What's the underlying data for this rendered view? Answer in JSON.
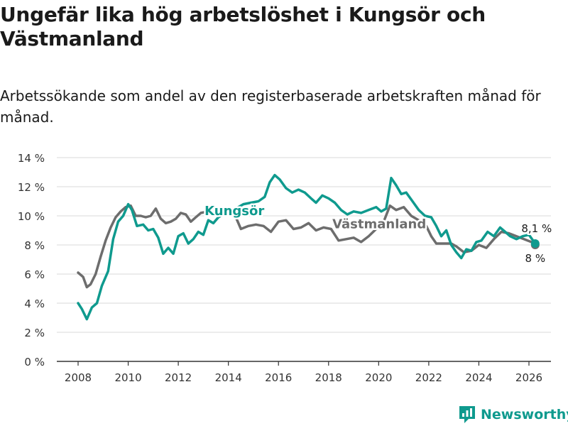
{
  "chart_data": {
    "type": "line",
    "title": "Ungefär lika hög arbetslöshet i Kungsör och Västmanland",
    "subtitle": "Arbetssökande som andel av den registerbaserade arbetskraften månad för månad.",
    "xlabel": "",
    "ylabel": "",
    "xlim": [
      2007.5,
      2026.8
    ],
    "ylim": [
      0,
      14
    ],
    "x_ticks": [
      2008,
      2010,
      2012,
      2014,
      2016,
      2018,
      2020,
      2022,
      2024,
      2026
    ],
    "x_tick_labels": [
      "2008",
      "2010",
      "2012",
      "2014",
      "2016",
      "2018",
      "2020",
      "2022",
      "2024",
      "2026"
    ],
    "y_ticks": [
      0,
      2,
      4,
      6,
      8,
      10,
      12,
      14
    ],
    "y_tick_labels": [
      "0 %",
      "2 %",
      "4 %",
      "6 %",
      "8 %",
      "10 %",
      "12 %",
      "14 %"
    ],
    "grid": true,
    "series": [
      {
        "name": "Västmanland",
        "color": "#6d6d6d",
        "end_label": "8 %",
        "points": [
          [
            2008.0,
            6.1
          ],
          [
            2008.2,
            5.8
          ],
          [
            2008.35,
            5.1
          ],
          [
            2008.5,
            5.3
          ],
          [
            2008.7,
            6.0
          ],
          [
            2008.9,
            7.2
          ],
          [
            2009.1,
            8.3
          ],
          [
            2009.3,
            9.2
          ],
          [
            2009.5,
            9.9
          ],
          [
            2009.7,
            10.3
          ],
          [
            2009.9,
            10.6
          ],
          [
            2010.1,
            10.7
          ],
          [
            2010.3,
            10.0
          ],
          [
            2010.5,
            10.0
          ],
          [
            2010.7,
            9.9
          ],
          [
            2010.9,
            10.0
          ],
          [
            2011.1,
            10.5
          ],
          [
            2011.3,
            9.8
          ],
          [
            2011.5,
            9.5
          ],
          [
            2011.7,
            9.6
          ],
          [
            2011.9,
            9.8
          ],
          [
            2012.1,
            10.2
          ],
          [
            2012.3,
            10.1
          ],
          [
            2012.5,
            9.6
          ],
          [
            2012.7,
            9.9
          ],
          [
            2012.9,
            10.2
          ],
          [
            2013.2,
            10.3
          ],
          [
            2013.6,
            10.1
          ],
          [
            2014.0,
            10.2
          ],
          [
            2014.3,
            9.9
          ],
          [
            2014.5,
            9.1
          ],
          [
            2014.8,
            9.3
          ],
          [
            2015.1,
            9.4
          ],
          [
            2015.4,
            9.3
          ],
          [
            2015.7,
            8.9
          ],
          [
            2016.0,
            9.6
          ],
          [
            2016.3,
            9.7
          ],
          [
            2016.6,
            9.1
          ],
          [
            2016.9,
            9.2
          ],
          [
            2017.2,
            9.5
          ],
          [
            2017.5,
            9.0
          ],
          [
            2017.8,
            9.2
          ],
          [
            2018.1,
            9.1
          ],
          [
            2018.4,
            8.3
          ],
          [
            2018.7,
            8.4
          ],
          [
            2019.0,
            8.5
          ],
          [
            2019.3,
            8.2
          ],
          [
            2019.6,
            8.6
          ],
          [
            2019.9,
            9.1
          ],
          [
            2020.2,
            9.6
          ],
          [
            2020.45,
            10.7
          ],
          [
            2020.7,
            10.4
          ],
          [
            2021.0,
            10.6
          ],
          [
            2021.3,
            10.0
          ],
          [
            2021.6,
            9.7
          ],
          [
            2021.9,
            9.3
          ],
          [
            2022.1,
            8.6
          ],
          [
            2022.3,
            8.1
          ],
          [
            2022.6,
            8.1
          ],
          [
            2022.9,
            8.1
          ],
          [
            2023.1,
            7.9
          ],
          [
            2023.4,
            7.5
          ],
          [
            2023.7,
            7.6
          ],
          [
            2024.0,
            8.0
          ],
          [
            2024.3,
            7.8
          ],
          [
            2024.6,
            8.4
          ],
          [
            2024.9,
            8.9
          ],
          [
            2025.2,
            8.8
          ],
          [
            2025.5,
            8.6
          ],
          [
            2025.8,
            8.4
          ],
          [
            2026.1,
            8.2
          ],
          [
            2026.25,
            8.0
          ]
        ]
      },
      {
        "name": "Kungsör",
        "color": "#0f9a8e",
        "end_label": "8,1 %",
        "points": [
          [
            2008.0,
            4.0
          ],
          [
            2008.15,
            3.6
          ],
          [
            2008.35,
            2.9
          ],
          [
            2008.55,
            3.7
          ],
          [
            2008.75,
            4.0
          ],
          [
            2008.95,
            5.2
          ],
          [
            2009.2,
            6.2
          ],
          [
            2009.4,
            8.4
          ],
          [
            2009.6,
            9.6
          ],
          [
            2009.8,
            10.0
          ],
          [
            2010.0,
            10.8
          ],
          [
            2010.15,
            10.4
          ],
          [
            2010.35,
            9.3
          ],
          [
            2010.6,
            9.4
          ],
          [
            2010.8,
            9.0
          ],
          [
            2011.0,
            9.1
          ],
          [
            2011.2,
            8.5
          ],
          [
            2011.4,
            7.4
          ],
          [
            2011.6,
            7.8
          ],
          [
            2011.8,
            7.4
          ],
          [
            2012.0,
            8.6
          ],
          [
            2012.2,
            8.8
          ],
          [
            2012.4,
            8.1
          ],
          [
            2012.6,
            8.4
          ],
          [
            2012.8,
            8.9
          ],
          [
            2013.0,
            8.7
          ],
          [
            2013.2,
            9.7
          ],
          [
            2013.4,
            9.5
          ],
          [
            2013.6,
            9.9
          ],
          [
            2013.8,
            10.1
          ],
          [
            2014.0,
            10.2
          ],
          [
            2014.3,
            10.5
          ],
          [
            2014.6,
            10.8
          ],
          [
            2014.9,
            10.9
          ],
          [
            2015.2,
            11.0
          ],
          [
            2015.45,
            11.3
          ],
          [
            2015.65,
            12.3
          ],
          [
            2015.85,
            12.8
          ],
          [
            2016.05,
            12.5
          ],
          [
            2016.3,
            11.9
          ],
          [
            2016.55,
            11.6
          ],
          [
            2016.8,
            11.8
          ],
          [
            2017.05,
            11.6
          ],
          [
            2017.3,
            11.2
          ],
          [
            2017.5,
            10.9
          ],
          [
            2017.75,
            11.4
          ],
          [
            2018.0,
            11.2
          ],
          [
            2018.25,
            10.9
          ],
          [
            2018.5,
            10.4
          ],
          [
            2018.75,
            10.1
          ],
          [
            2019.0,
            10.3
          ],
          [
            2019.3,
            10.2
          ],
          [
            2019.6,
            10.4
          ],
          [
            2019.9,
            10.6
          ],
          [
            2020.1,
            10.3
          ],
          [
            2020.3,
            10.5
          ],
          [
            2020.5,
            12.6
          ],
          [
            2020.7,
            12.1
          ],
          [
            2020.9,
            11.5
          ],
          [
            2021.1,
            11.6
          ],
          [
            2021.35,
            11.0
          ],
          [
            2021.6,
            10.4
          ],
          [
            2021.85,
            10.0
          ],
          [
            2022.1,
            9.9
          ],
          [
            2022.3,
            9.3
          ],
          [
            2022.5,
            8.6
          ],
          [
            2022.7,
            9.0
          ],
          [
            2022.9,
            8.0
          ],
          [
            2023.1,
            7.5
          ],
          [
            2023.3,
            7.1
          ],
          [
            2023.5,
            7.7
          ],
          [
            2023.7,
            7.6
          ],
          [
            2023.9,
            8.2
          ],
          [
            2024.1,
            8.3
          ],
          [
            2024.35,
            8.9
          ],
          [
            2024.6,
            8.6
          ],
          [
            2024.85,
            9.2
          ],
          [
            2025.05,
            8.9
          ],
          [
            2025.25,
            8.6
          ],
          [
            2025.5,
            8.4
          ],
          [
            2025.75,
            8.6
          ],
          [
            2026.0,
            8.7
          ],
          [
            2026.25,
            8.1
          ]
        ]
      }
    ],
    "annotations": [
      {
        "text": "Kungsör",
        "series": "Kungsör"
      },
      {
        "text": "Västmanland",
        "series": "Västmanland"
      }
    ]
  },
  "brand": {
    "name": "Newsworthy",
    "icon": "bar-chart-logo-icon"
  }
}
